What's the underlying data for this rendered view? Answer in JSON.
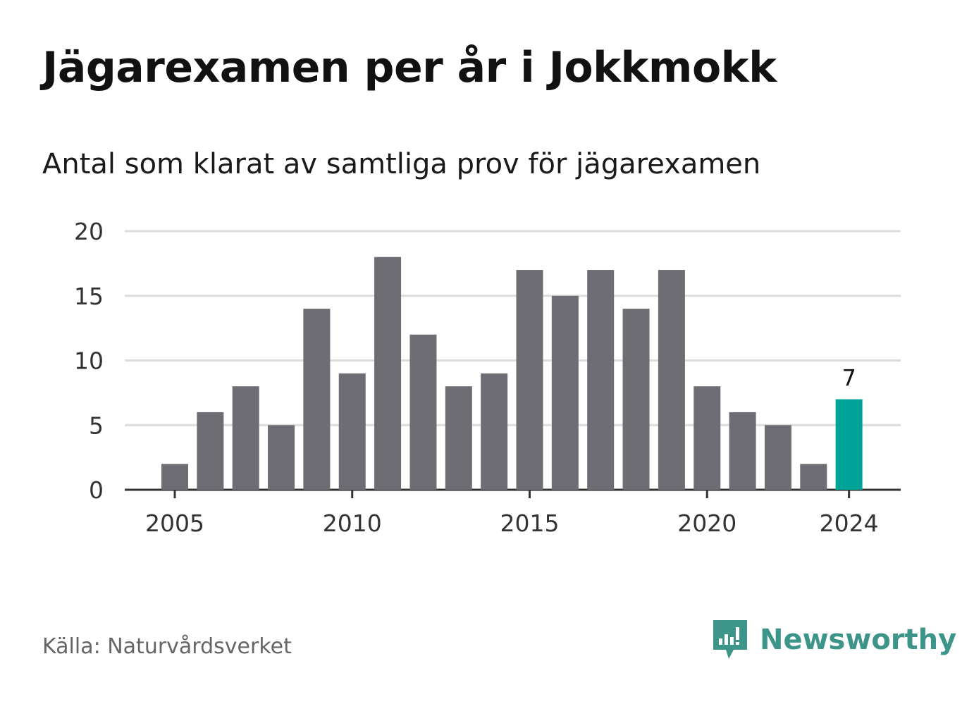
{
  "chart_data": {
    "type": "bar",
    "title": "Jägarexamen per år i Jokkmokk",
    "subtitle": "Antal som klarat av samtliga prov för jägarexamen",
    "categories": [
      2005,
      2006,
      2007,
      2008,
      2009,
      2010,
      2011,
      2012,
      2013,
      2014,
      2015,
      2016,
      2017,
      2018,
      2019,
      2020,
      2021,
      2022,
      2023,
      2024
    ],
    "values": [
      2,
      6,
      8,
      5,
      14,
      9,
      18,
      12,
      8,
      9,
      17,
      15,
      17,
      14,
      17,
      8,
      6,
      5,
      2,
      7
    ],
    "x_ticks": [
      "2005",
      "2010",
      "2015",
      "2020",
      "2024"
    ],
    "y_ticks": [
      "0",
      "5",
      "10",
      "15",
      "20"
    ],
    "ylim": [
      0,
      20
    ],
    "grid": true,
    "highlight": {
      "category": 2024,
      "label": "7",
      "color": "#00a398"
    },
    "bar_color": "#6e6d73"
  },
  "source": "Källa: Naturvårdsverket",
  "brand": {
    "name": "Newsworthy",
    "icon": "newsworthy-logo-icon",
    "color": "#3d9589"
  }
}
